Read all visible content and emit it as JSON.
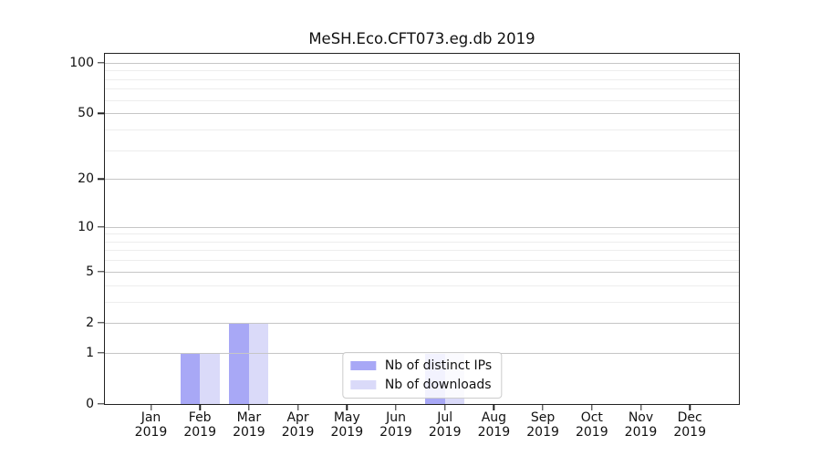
{
  "chart_data": {
    "type": "bar",
    "title": "MeSH.Eco.CFT073.eg.db 2019",
    "categories": [
      "Jan",
      "Feb",
      "Mar",
      "Apr",
      "May",
      "Jun",
      "Jul",
      "Aug",
      "Sep",
      "Oct",
      "Nov",
      "Dec"
    ],
    "x_year_label": "2019",
    "series": [
      {
        "name": "Nb of distinct IPs",
        "color": "#a8a8f6",
        "values": [
          0,
          1,
          2,
          0,
          0,
          0,
          1,
          0,
          0,
          0,
          0,
          0
        ]
      },
      {
        "name": "Nb of downloads",
        "color": "#dadaf9",
        "values": [
          0,
          1,
          2,
          0,
          0,
          0,
          1,
          0,
          0,
          0,
          0,
          0
        ]
      }
    ],
    "yscale": "log1p",
    "ylim": [
      0,
      113
    ],
    "y_major_ticks": [
      0,
      1,
      2,
      5,
      10,
      20,
      50,
      100
    ],
    "y_minor_ticks": [
      3,
      4,
      6,
      7,
      8,
      9,
      30,
      40,
      60,
      70,
      80,
      90
    ],
    "grid": true,
    "legend_position": "lower center"
  },
  "colors": {
    "background": "#ffffff",
    "spine": "#222222",
    "grid_major": "#c6c6c6",
    "grid_minor": "#ededed",
    "text": "#111111",
    "legend_border": "#cccccc",
    "legend_bg": "rgba(255,255,255,0.85)"
  }
}
